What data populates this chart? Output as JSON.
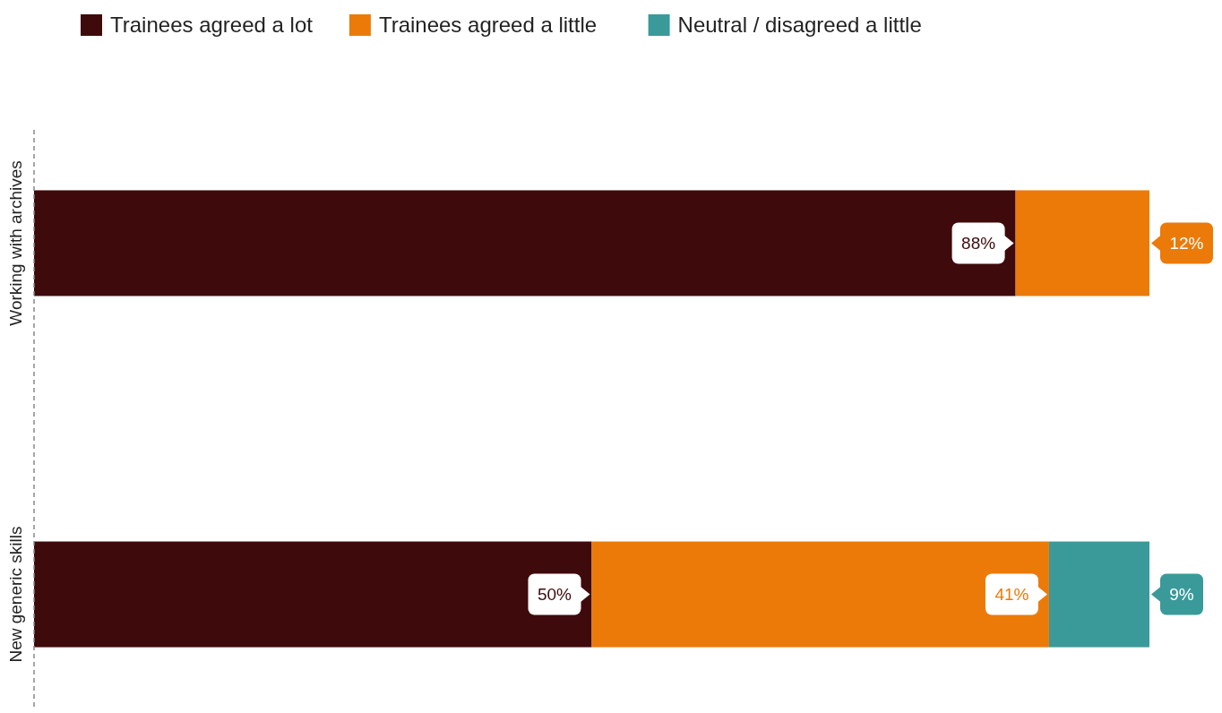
{
  "chart_data": {
    "type": "bar",
    "orientation": "horizontal",
    "stacked": true,
    "categories": [
      "Working with archives",
      "New generic skills"
    ],
    "series": [
      {
        "name": "Trainees agreed a lot",
        "color": "#3f0a0b",
        "values": [
          88,
          50
        ],
        "value_labels": [
          "88%",
          "50%"
        ]
      },
      {
        "name": "Trainees agreed a little",
        "color": "#ec7a08",
        "values": [
          12,
          41
        ],
        "value_labels": [
          "12%",
          "41%"
        ]
      },
      {
        "name": "Neutral / disagreed a little",
        "color": "#3a9a9a",
        "values": [
          null,
          9
        ],
        "value_labels": [
          null,
          "9%"
        ]
      }
    ],
    "xlim": [
      0,
      100
    ],
    "tick_labels": "y",
    "legend": "top"
  }
}
